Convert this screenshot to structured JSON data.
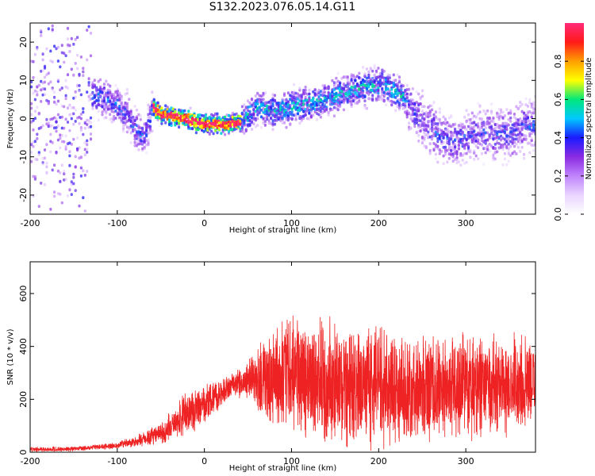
{
  "title": "S132.2023.076.05.14.G11",
  "colors": {
    "snr_line": "#ee2222",
    "axis": "#000000",
    "colormap": [
      "#ffffff",
      "#e9d5ff",
      "#c084fc",
      "#8a2be2",
      "#1a1aff",
      "#00c8ff",
      "#00e87a",
      "#ffff00",
      "#ffa000",
      "#ff1a1a",
      "#ff2a7a"
    ]
  },
  "chart_data": [
    {
      "type": "heatmap",
      "title": "S132.2023.076.05.14.G11",
      "xlabel": "Height of straight line (km)",
      "ylabel": "Frequency (Hz)",
      "xlim": [
        -200,
        380
      ],
      "ylim": [
        -25,
        25
      ],
      "xticks": [
        -200,
        -100,
        0,
        100,
        200,
        300
      ],
      "yticks": [
        -20,
        -10,
        0,
        10,
        20
      ],
      "colorbar": {
        "label": "Normalized spectral amplitude",
        "range": [
          0,
          1
        ],
        "ticks": [
          0.0,
          0.2,
          0.4,
          0.6,
          0.8
        ]
      },
      "ridge": {
        "x": [
          -130,
          -110,
          -90,
          -80,
          -70,
          -60,
          -50,
          -30,
          -10,
          0,
          20,
          40,
          60,
          80,
          100,
          120,
          140,
          160,
          180,
          200,
          220,
          240,
          260,
          280,
          300,
          320,
          340,
          360,
          380
        ],
        "frequency": [
          6,
          5,
          1,
          -3,
          -5,
          3,
          1,
          0.5,
          -1,
          -1.5,
          -1.5,
          -1,
          3,
          2,
          3,
          4,
          5,
          7,
          8,
          9,
          7,
          2,
          -3,
          -6,
          -5,
          -4,
          -4,
          -3,
          -1
        ]
      }
    },
    {
      "type": "line",
      "xlabel": "Height of straight line (km)",
      "ylabel": "SNR (10 * v/v)",
      "xlim": [
        -200,
        380
      ],
      "ylim": [
        0,
        720
      ],
      "xticks": [
        -200,
        -100,
        0,
        100,
        200,
        300
      ],
      "yticks": [
        0,
        200,
        400,
        600
      ],
      "envelope": {
        "x": [
          -200,
          -150,
          -100,
          -80,
          -60,
          -45,
          -30,
          -10,
          10,
          30,
          50,
          70,
          100,
          150,
          200,
          250,
          300,
          340,
          380
        ],
        "mean": [
          10,
          12,
          25,
          40,
          60,
          80,
          130,
          160,
          200,
          250,
          270,
          280,
          300,
          260,
          240,
          240,
          250,
          250,
          260
        ],
        "spread": [
          8,
          8,
          12,
          20,
          30,
          40,
          70,
          80,
          60,
          40,
          70,
          160,
          200,
          220,
          210,
          180,
          180,
          170,
          160
        ]
      }
    }
  ]
}
